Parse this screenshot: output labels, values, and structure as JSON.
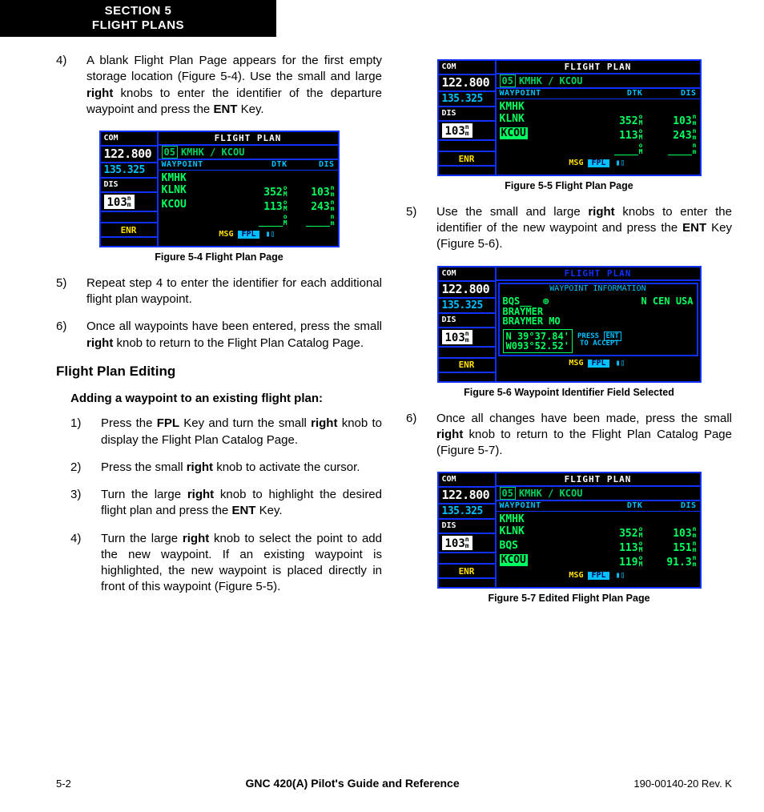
{
  "header": {
    "line1": "SECTION 5",
    "line2": "FLIGHT PLANS"
  },
  "left": {
    "step4": {
      "num": "4)",
      "html": "A blank Flight Plan Page appears for the first empty storage location (Figure 5-4).  Use the small and large <b>right</b> knobs to enter the identifier of the departure waypoint and press the <b>ENT</b> Key."
    },
    "step5": {
      "num": "5)",
      "html": "Repeat step 4 to enter the identifier for each additional flight plan waypoint."
    },
    "step6": {
      "num": "6)",
      "html": "Once all waypoints have been entered, press the small <b>right</b> knob to return to the Flight Plan Catalog Page."
    },
    "heading": "Flight Plan Editing",
    "subheading": "Adding a waypoint to an existing flight plan:",
    "p1": {
      "num": "1)",
      "html": "Press the <b>FPL</b> Key and turn the small <b>right</b> knob to display the Flight Plan Catalog Page."
    },
    "p2": {
      "num": "2)",
      "html": "Press the small <b>right</b> knob to activate the cursor."
    },
    "p3": {
      "num": "3)",
      "html": "Turn the large <b>right</b> knob to highlight the desired flight plan and press the <b>ENT</b> Key."
    },
    "p4": {
      "num": "4)",
      "html": "Turn the large <b>right</b> knob to select the point to add the new waypoint.  If an existing waypoint is highlighted, the new waypoint is placed directly in front of this waypoint (Figure 5-5)."
    },
    "caption4": "Figure 5-4  Flight Plan Page"
  },
  "right": {
    "caption5": "Figure 5-5  Flight Plan Page",
    "step5": {
      "num": "5)",
      "html": "Use the small and large <b>right</b> knobs to enter the identifier of the new waypoint and press the <b>ENT</b> Key (Figure 5-6)."
    },
    "caption6": "Figure 5-6  Waypoint Identifier Field Selected",
    "step6": {
      "num": "6)",
      "html": "Once all changes have been made, press the small <b>right</b> knob to return to the Flight Plan Catalog Page (Figure 5-7)."
    },
    "caption7": "Figure 5-7  Edited Flight Plan Page"
  },
  "gps": {
    "com": "COM",
    "act": "122.800",
    "stb": "135.325",
    "dis_label": "DIS",
    "dis_val": "103",
    "dis_unit_top": "n",
    "dis_unit_bot": "m",
    "enr": "ENR",
    "title": "FLIGHT PLAN",
    "plan_num": "05",
    "plan_name": "KMHK / KCOU",
    "col1": "WAYPOINT",
    "col2": "DTK",
    "col3": "DIS",
    "deg_top": "o",
    "deg_bot": "M",
    "msg": "MSG",
    "fpl": "FPL"
  },
  "fig4": {
    "wps": [
      {
        "id": "KMHK",
        "dtk": "",
        "dis": ""
      },
      {
        "id": "KLNK",
        "dtk": "352",
        "dis": "103"
      },
      {
        "id": "KCOU",
        "dtk": "113",
        "dis": "243"
      },
      {
        "id": "",
        "dtk": "___",
        "dis": "",
        "last": true
      }
    ]
  },
  "fig5": {
    "wps": [
      {
        "id": "KMHK",
        "dtk": "",
        "dis": ""
      },
      {
        "id": "KLNK",
        "dtk": "352",
        "dis": "103"
      },
      {
        "id": "KCOU",
        "dtk": "113",
        "dis": "243",
        "hl": true
      },
      {
        "id": "",
        "dtk": "___",
        "dis": "",
        "last": true
      }
    ]
  },
  "fig6": {
    "title": "WAYPOINT INFORMATION",
    "ident": "BQS__",
    "region": "N CEN USA",
    "name1": "BRAYMER",
    "name2": "BRAYMER MO",
    "lat": "N 39°37.84'",
    "lon": "W093°52.52'",
    "press": "PRESS",
    "ent": "ENT",
    "accept": "TO ACCEPT"
  },
  "fig7": {
    "wps": [
      {
        "id": "KMHK",
        "dtk": "",
        "dis": ""
      },
      {
        "id": "KLNK",
        "dtk": "352",
        "dis": "103"
      },
      {
        "id": "BQS",
        "dtk": "113",
        "dis": "151"
      },
      {
        "id": "KCOU",
        "dtk": "119",
        "dis": "91.3",
        "hl": true
      }
    ]
  },
  "footer": {
    "left": "5-2",
    "center": "GNC 420(A) Pilot's Guide and Reference",
    "right": "190-00140-20  Rev. K"
  }
}
